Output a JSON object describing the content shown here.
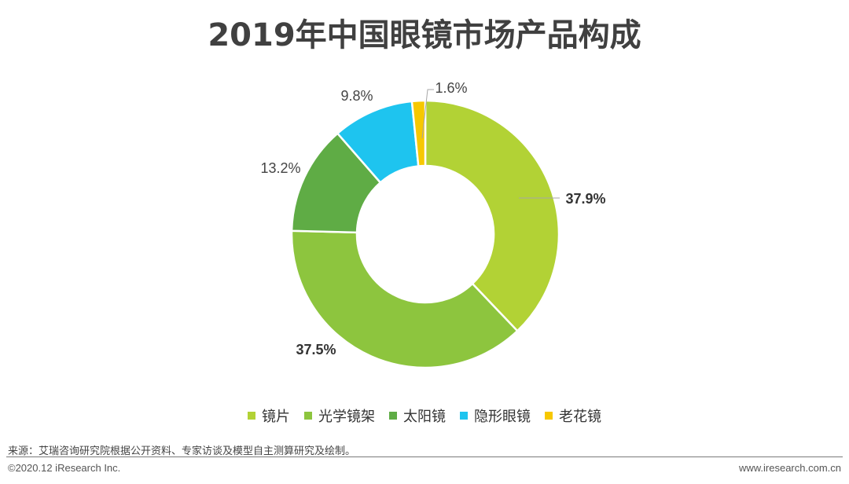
{
  "title": "2019年中国眼镜市场产品构成",
  "chart_data": {
    "type": "pie",
    "subtype": "donut",
    "title": "2019年中国眼镜市场产品构成",
    "start": "12 o'clock, clockwise",
    "series": [
      {
        "name": "镜片",
        "value": 37.9,
        "label": "37.9%",
        "color": "#b2d235",
        "label_bold": true
      },
      {
        "name": "光学镜架",
        "value": 37.5,
        "label": "37.5%",
        "color": "#8dc53e",
        "label_bold": true
      },
      {
        "name": "太阳镜",
        "value": 13.2,
        "label": "13.2%",
        "color": "#5fac45",
        "label_bold": false
      },
      {
        "name": "隐形眼镜",
        "value": 9.8,
        "label": "9.8%",
        "color": "#1ec4ef",
        "label_bold": false
      },
      {
        "name": "老花镜",
        "value": 1.6,
        "label": "1.6%",
        "color": "#f7c800",
        "label_bold": false
      }
    ],
    "legend_position": "bottom"
  },
  "footer": {
    "source": "来源：艾瑞咨询研究院根据公开资料、专家访谈及模型自主测算研究及绘制。",
    "copyright": "©2020.12 iResearch Inc.",
    "site": "www.iresearch.com.cn"
  }
}
